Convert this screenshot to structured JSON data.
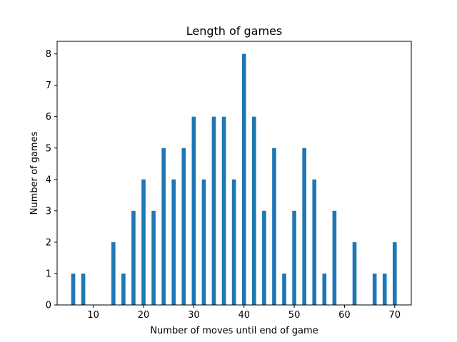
{
  "chart_data": {
    "type": "bar",
    "title": "Length of games",
    "xlabel": "Number of moves until end of game",
    "ylabel": "Number of games",
    "xlim": [
      2.8,
      73.3
    ],
    "ylim": [
      0,
      8.4
    ],
    "xticks": [
      10,
      20,
      30,
      40,
      50,
      60,
      70
    ],
    "yticks": [
      0,
      1,
      2,
      3,
      4,
      5,
      6,
      7,
      8
    ],
    "bar_width": 0.8,
    "color": "#1f77b4",
    "grid": false,
    "legend": "none",
    "x": [
      6,
      8,
      14,
      16,
      18,
      20,
      22,
      24,
      26,
      28,
      30,
      32,
      34,
      36,
      38,
      40,
      42,
      44,
      46,
      48,
      50,
      52,
      54,
      56,
      58,
      62,
      66,
      68,
      70
    ],
    "values": [
      1,
      1,
      2,
      1,
      3,
      4,
      3,
      5,
      4,
      5,
      6,
      4,
      6,
      6,
      4,
      8,
      6,
      3,
      5,
      1,
      3,
      5,
      4,
      1,
      3,
      2,
      1,
      1,
      2
    ]
  }
}
